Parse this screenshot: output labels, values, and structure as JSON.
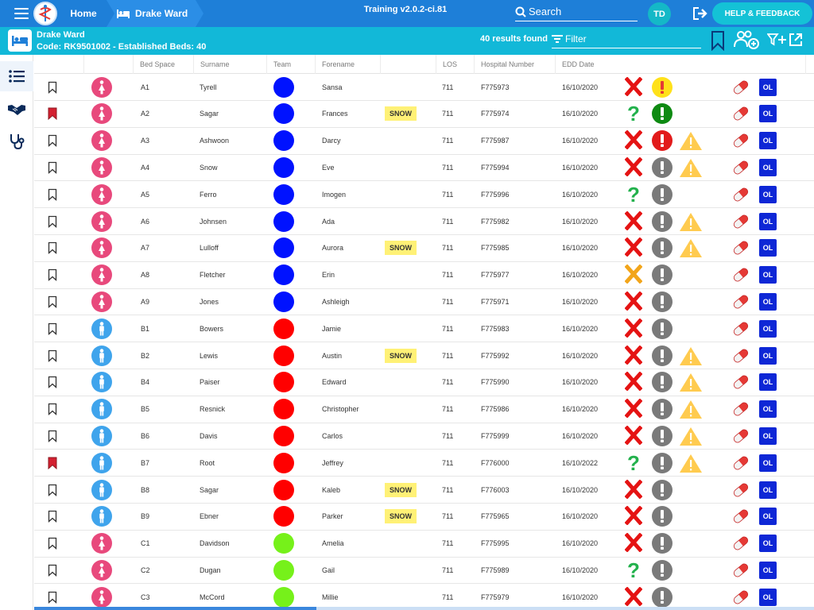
{
  "app": {
    "logo_icon": "caduceus-logo-icon",
    "build": "Training v2.0.2-ci.81"
  },
  "breadcrumb": {
    "home": "Home",
    "ward": "Drake Ward"
  },
  "search": {
    "label": "Search"
  },
  "user": {
    "initials": "TD"
  },
  "help_button": "HELP & FEEDBACK",
  "ward": {
    "name": "Drake Ward",
    "code_line": "Code: RK9501002 - Established Beds: 40",
    "results": "40 results found",
    "filter_label": "Filter"
  },
  "columns": [
    "Bed Space",
    "Surname",
    "Team",
    "Forename",
    "LOS",
    "Hospital Number",
    "EDD Date"
  ],
  "colors": {
    "blue_team": "#0012ff",
    "red_team": "#ff0000",
    "green_team": "#76f11a",
    "female": "#e8497c",
    "male": "#3fa4ec",
    "bookmark_on": "#d32030",
    "x_red": "#e51313",
    "x_orange": "#f2a51a",
    "q_green": "#22b14c",
    "alert_yellow": "#ffe11a",
    "alert_green": "#0e8a12",
    "alert_red": "#e21b1b",
    "alert_grey": "#7a7a7a",
    "warn": "#ffcb4f"
  },
  "rows": [
    {
      "bookmarked": false,
      "gender": "female",
      "bed": "A1",
      "surname": "Tyrell",
      "team": "blue",
      "forename": "Sansa",
      "tag": "",
      "los": "711",
      "hosp": "F775973",
      "edd": "16/10/2020",
      "status": "x_red",
      "alert": "yellow",
      "warn": false,
      "edge": ""
    },
    {
      "bookmarked": true,
      "gender": "female",
      "bed": "A2",
      "surname": "Sagar",
      "team": "blue",
      "forename": "Frances",
      "tag": "SNOW",
      "los": "711",
      "hosp": "F775974",
      "edd": "16/10/2020",
      "status": "q_green",
      "alert": "green",
      "warn": false,
      "edge": ""
    },
    {
      "bookmarked": false,
      "gender": "female",
      "bed": "A3",
      "surname": "Ashwoon",
      "team": "blue",
      "forename": "Darcy",
      "tag": "",
      "los": "711",
      "hosp": "F775987",
      "edd": "16/10/2020",
      "status": "x_red",
      "alert": "red",
      "warn": true,
      "edge": ""
    },
    {
      "bookmarked": false,
      "gender": "female",
      "bed": "A4",
      "surname": "Snow",
      "team": "blue",
      "forename": "Eve",
      "tag": "",
      "los": "711",
      "hosp": "F775994",
      "edd": "16/10/2020",
      "status": "x_red",
      "alert": "grey",
      "warn": true,
      "edge": ""
    },
    {
      "bookmarked": false,
      "gender": "female",
      "bed": "A5",
      "surname": "Ferro",
      "team": "blue",
      "forename": "Imogen",
      "tag": "",
      "los": "711",
      "hosp": "F775996",
      "edd": "16/10/2020",
      "status": "q_green",
      "alert": "grey",
      "warn": false,
      "edge": "#ffeb3b"
    },
    {
      "bookmarked": false,
      "gender": "female",
      "bed": "A6",
      "surname": "Johnsen",
      "team": "blue",
      "forename": "Ada",
      "tag": "",
      "los": "711",
      "hosp": "F775982",
      "edd": "16/10/2020",
      "status": "x_red",
      "alert": "grey",
      "warn": true,
      "edge": "#d81b60"
    },
    {
      "bookmarked": false,
      "gender": "female",
      "bed": "A7",
      "surname": "Lulloff",
      "team": "blue",
      "forename": "Aurora",
      "tag": "SNOW",
      "los": "711",
      "hosp": "F775985",
      "edd": "16/10/2020",
      "status": "x_red",
      "alert": "grey",
      "warn": true,
      "edge": ""
    },
    {
      "bookmarked": false,
      "gender": "female",
      "bed": "A8",
      "surname": "Fletcher",
      "team": "blue",
      "forename": "Erin",
      "tag": "",
      "los": "711",
      "hosp": "F775977",
      "edd": "16/10/2020",
      "status": "x_orange",
      "alert": "grey",
      "warn": false,
      "edge": ""
    },
    {
      "bookmarked": false,
      "gender": "female",
      "bed": "A9",
      "surname": "Jones",
      "team": "blue",
      "forename": "Ashleigh",
      "tag": "",
      "los": "711",
      "hosp": "F775971",
      "edd": "16/10/2020",
      "status": "x_red",
      "alert": "grey",
      "warn": false,
      "edge": "#ffeb3b"
    },
    {
      "bookmarked": false,
      "gender": "male",
      "bed": "B1",
      "surname": "Bowers",
      "team": "red",
      "forename": "Jamie",
      "tag": "",
      "los": "711",
      "hosp": "F775983",
      "edd": "16/10/2020",
      "status": "x_red",
      "alert": "grey",
      "warn": false,
      "edge": ""
    },
    {
      "bookmarked": false,
      "gender": "male",
      "bed": "B2",
      "surname": "Lewis",
      "team": "red",
      "forename": "Austin",
      "tag": "SNOW",
      "los": "711",
      "hosp": "F775992",
      "edd": "16/10/2020",
      "status": "x_red",
      "alert": "grey",
      "warn": true,
      "edge": "#26c6da"
    },
    {
      "bookmarked": false,
      "gender": "male",
      "bed": "B4",
      "surname": "Paiser",
      "team": "red",
      "forename": "Edward",
      "tag": "",
      "los": "711",
      "hosp": "F775990",
      "edd": "16/10/2020",
      "status": "x_red",
      "alert": "grey",
      "warn": true,
      "edge": ""
    },
    {
      "bookmarked": false,
      "gender": "male",
      "bed": "B5",
      "surname": "Resnick",
      "team": "red",
      "forename": "Christopher",
      "tag": "",
      "los": "711",
      "hosp": "F775986",
      "edd": "16/10/2020",
      "status": "x_red",
      "alert": "grey",
      "warn": true,
      "edge": ""
    },
    {
      "bookmarked": false,
      "gender": "male",
      "bed": "B6",
      "surname": "Davis",
      "team": "red",
      "forename": "Carlos",
      "tag": "",
      "los": "711",
      "hosp": "F775999",
      "edd": "16/10/2020",
      "status": "x_red",
      "alert": "grey",
      "warn": true,
      "edge": "#2e7d32"
    },
    {
      "bookmarked": true,
      "gender": "male",
      "bed": "B7",
      "surname": "Root",
      "team": "red",
      "forename": "Jeffrey",
      "tag": "",
      "los": "711",
      "hosp": "F776000",
      "edd": "16/10/2022",
      "status": "q_green",
      "alert": "grey",
      "warn": true,
      "edge": "#d81b60"
    },
    {
      "bookmarked": false,
      "gender": "male",
      "bed": "B8",
      "surname": "Sagar",
      "team": "red",
      "forename": "Kaleb",
      "tag": "SNOW",
      "los": "711",
      "hosp": "F776003",
      "edd": "16/10/2020",
      "status": "x_red",
      "alert": "grey",
      "warn": false,
      "edge": "#ffeb3b"
    },
    {
      "bookmarked": false,
      "gender": "male",
      "bed": "B9",
      "surname": "Ebner",
      "team": "red",
      "forename": "Parker",
      "tag": "SNOW",
      "los": "711",
      "hosp": "F775965",
      "edd": "16/10/2020",
      "status": "x_red",
      "alert": "grey",
      "warn": false,
      "edge": ""
    },
    {
      "bookmarked": false,
      "gender": "female",
      "bed": "C1",
      "surname": "Davidson",
      "team": "green",
      "forename": "Amelia",
      "tag": "",
      "los": "711",
      "hosp": "F775995",
      "edd": "16/10/2020",
      "status": "x_red",
      "alert": "grey",
      "warn": false,
      "edge": ""
    },
    {
      "bookmarked": false,
      "gender": "female",
      "bed": "C2",
      "surname": "Dugan",
      "team": "green",
      "forename": "Gail",
      "tag": "",
      "los": "711",
      "hosp": "F775989",
      "edd": "16/10/2020",
      "status": "q_green",
      "alert": "grey",
      "warn": false,
      "edge": ""
    },
    {
      "bookmarked": false,
      "gender": "female",
      "bed": "C3",
      "surname": "McCord",
      "team": "green",
      "forename": "Millie",
      "tag": "",
      "los": "711",
      "hosp": "F775979",
      "edd": "16/10/2020",
      "status": "x_red",
      "alert": "grey",
      "warn": false,
      "edge": ""
    }
  ],
  "ol_label": "OL"
}
